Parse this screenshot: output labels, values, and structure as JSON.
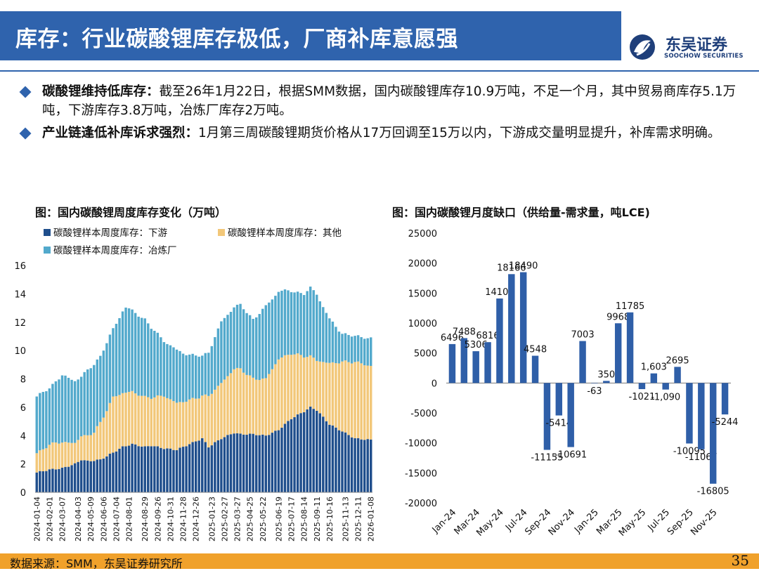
{
  "header": {
    "title": "库存：行业碳酸锂库存极低，厂商补库意愿强",
    "logo_cn": "东吴证券",
    "logo_en": "SOOCHOW SECURITIES"
  },
  "bullets": [
    {
      "bold": "碳酸锂维持低库存：",
      "text": "截至26年1月22日，根据SMM数据，国内碳酸锂库存10.9万吨，不足一个月，其中贸易商库存5.1万吨，下游库存3.8万吨，冶炼厂库存2万吨。"
    },
    {
      "bold": "产业链逢低补库诉求强烈：",
      "text": "1月第三周碳酸锂期货价格从17万回调至15万以内，下游成交量明显提升，补库需求明确。"
    }
  ],
  "colors": {
    "brand": "#2f63ad",
    "downstream": "#1f4e8c",
    "other": "#f2c779",
    "smelter": "#52a9cc",
    "bar": "#2f5fa8",
    "footer": "#f0a12b"
  },
  "chart_data": [
    {
      "type": "bar",
      "stacked": true,
      "title": "图：国内碳酸锂周度库存变化（万吨）",
      "ylim": [
        0,
        16
      ],
      "yticks": [
        "0",
        "2",
        "4",
        "6",
        "8",
        "10",
        "12",
        "14",
        "16"
      ],
      "xtick_labels": [
        "2024-01-04",
        "2024-02-01",
        "2024-03-07",
        "2024-04-03",
        "2024-05-09",
        "2024-06-06",
        "2024-07-04",
        "2024-08-01",
        "2024-08-29",
        "2024-09-26",
        "2024-10-31",
        "2024-11-28",
        "2024-12-26",
        "2025-01-23",
        "2025-02-27",
        "2025-03-27",
        "2025-04-25",
        "2025-05-22",
        "2025-06-19",
        "2025-07-17",
        "2025-08-14",
        "2025-09-11",
        "2025-10-16",
        "2025-11-13",
        "2025-12-11",
        "2026-01-08"
      ],
      "series": [
        {
          "name": "碳酸锂样本周度库存：下游",
          "color_key": "downstream"
        },
        {
          "name": "碳酸锂样本周度库存：其他",
          "color_key": "other"
        },
        {
          "name": "碳酸锂样本周度库存：冶炼厂",
          "color_key": "smelter"
        }
      ],
      "knots": {
        "downstream": [
          [
            0,
            1.4
          ],
          [
            4,
            1.6
          ],
          [
            8,
            1.7
          ],
          [
            12,
            2.0
          ],
          [
            14,
            2.3
          ],
          [
            16,
            2.2
          ],
          [
            20,
            2.3
          ],
          [
            24,
            2.8
          ],
          [
            27,
            3.2
          ],
          [
            30,
            3.4
          ],
          [
            34,
            3.2
          ],
          [
            36,
            3.3
          ],
          [
            40,
            3.1
          ],
          [
            44,
            3.0
          ],
          [
            48,
            3.4
          ],
          [
            52,
            3.8
          ],
          [
            54,
            3.2
          ],
          [
            58,
            3.8
          ],
          [
            62,
            4.2
          ],
          [
            64,
            4.1
          ],
          [
            68,
            4.1
          ],
          [
            72,
            4.0
          ],
          [
            76,
            4.4
          ],
          [
            80,
            5.2
          ],
          [
            84,
            5.7
          ],
          [
            86,
            6.0
          ],
          [
            88,
            5.8
          ],
          [
            92,
            4.8
          ],
          [
            96,
            4.3
          ],
          [
            100,
            3.8
          ],
          [
            105,
            3.7
          ]
        ],
        "other": [
          [
            0,
            1.3
          ],
          [
            2,
            1.6
          ],
          [
            4,
            1.7
          ],
          [
            6,
            1.9
          ],
          [
            8,
            1.8
          ],
          [
            12,
            1.5
          ],
          [
            16,
            1.8
          ],
          [
            18,
            2.0
          ],
          [
            20,
            2.6
          ],
          [
            24,
            3.9
          ],
          [
            27,
            3.8
          ],
          [
            30,
            3.7
          ],
          [
            34,
            3.5
          ],
          [
            36,
            3.4
          ],
          [
            40,
            3.7
          ],
          [
            44,
            3.3
          ],
          [
            48,
            3.1
          ],
          [
            52,
            3.0
          ],
          [
            54,
            3.6
          ],
          [
            58,
            3.9
          ],
          [
            62,
            4.5
          ],
          [
            64,
            4.6
          ],
          [
            68,
            3.9
          ],
          [
            72,
            4.0
          ],
          [
            76,
            5.0
          ],
          [
            80,
            4.6
          ],
          [
            84,
            3.9
          ],
          [
            86,
            3.6
          ],
          [
            88,
            3.5
          ],
          [
            92,
            4.3
          ],
          [
            96,
            4.9
          ],
          [
            100,
            5.4
          ],
          [
            105,
            5.2
          ]
        ],
        "smelter": [
          [
            0,
            4.0
          ],
          [
            4,
            4.0
          ],
          [
            8,
            4.7
          ],
          [
            12,
            4.4
          ],
          [
            14,
            4.2
          ],
          [
            16,
            4.6
          ],
          [
            18,
            4.8
          ],
          [
            20,
            4.7
          ],
          [
            24,
            4.8
          ],
          [
            27,
            5.8
          ],
          [
            28,
            6.0
          ],
          [
            30,
            5.7
          ],
          [
            34,
            5.5
          ],
          [
            36,
            4.9
          ],
          [
            40,
            3.9
          ],
          [
            44,
            3.7
          ],
          [
            48,
            3.2
          ],
          [
            52,
            2.8
          ],
          [
            54,
            3.1
          ],
          [
            58,
            4.3
          ],
          [
            62,
            4.4
          ],
          [
            64,
            4.5
          ],
          [
            68,
            4.2
          ],
          [
            72,
            5.1
          ],
          [
            76,
            4.8
          ],
          [
            80,
            4.4
          ],
          [
            84,
            4.4
          ],
          [
            86,
            4.8
          ],
          [
            88,
            4.7
          ],
          [
            92,
            3.1
          ],
          [
            96,
            2.0
          ],
          [
            100,
            1.8
          ],
          [
            105,
            2.0
          ]
        ]
      },
      "n_weeks": 106
    },
    {
      "type": "bar",
      "title": "图：国内碳酸锂月度缺口（供给量-需求量，吨LCE)",
      "ylim": [
        -20000,
        25000
      ],
      "yticks": [
        "-20000",
        "-15000",
        "-10000",
        "-5000",
        "0",
        "5000",
        "10000",
        "15000",
        "20000",
        "25000"
      ],
      "categories": [
        "Jan-24",
        "Feb-24",
        "Mar-24",
        "Apr-24",
        "May-24",
        "Jun-24",
        "Jul-24",
        "Aug-24",
        "Sep-24",
        "Oct-24",
        "Nov-24",
        "Dec-24",
        "Jan-25",
        "Feb-25",
        "Mar-25",
        "Apr-25",
        "May-25",
        "Jun-25",
        "Jul-25",
        "Aug-25",
        "Sep-25",
        "Oct-25",
        "Nov-25",
        "Dec-25"
      ],
      "xtick_labels": [
        "Jan-24",
        "Mar-24",
        "May-24",
        "Jul-24",
        "Sep-24",
        "Nov-24",
        "Jan-25",
        "Mar-25",
        "May-25",
        "Jul-25",
        "Sep-25",
        "Nov-25"
      ],
      "values": [
        6496,
        7488,
        5306,
        6816,
        14100,
        18166,
        18490,
        4548,
        -11155,
        -5414,
        -10691,
        7003,
        -63,
        350,
        9968,
        11785,
        -1021,
        1603,
        -1090,
        2695,
        -10095,
        -11067,
        -16805,
        -5244
      ],
      "labels": [
        "6496",
        "7488",
        "5306",
        "6816",
        "14100",
        "18166",
        "18490",
        "4548",
        "-11155",
        "-5414",
        "-10691",
        "7003",
        "-63",
        "350",
        "9968",
        "11785",
        "-1021",
        "1,603",
        "-1,090",
        "2695",
        "-10095",
        "-11067",
        "-16805",
        "-5244"
      ]
    }
  ],
  "footer": {
    "source": "数据来源：SMM，东吴证券研究所",
    "page": "35"
  }
}
